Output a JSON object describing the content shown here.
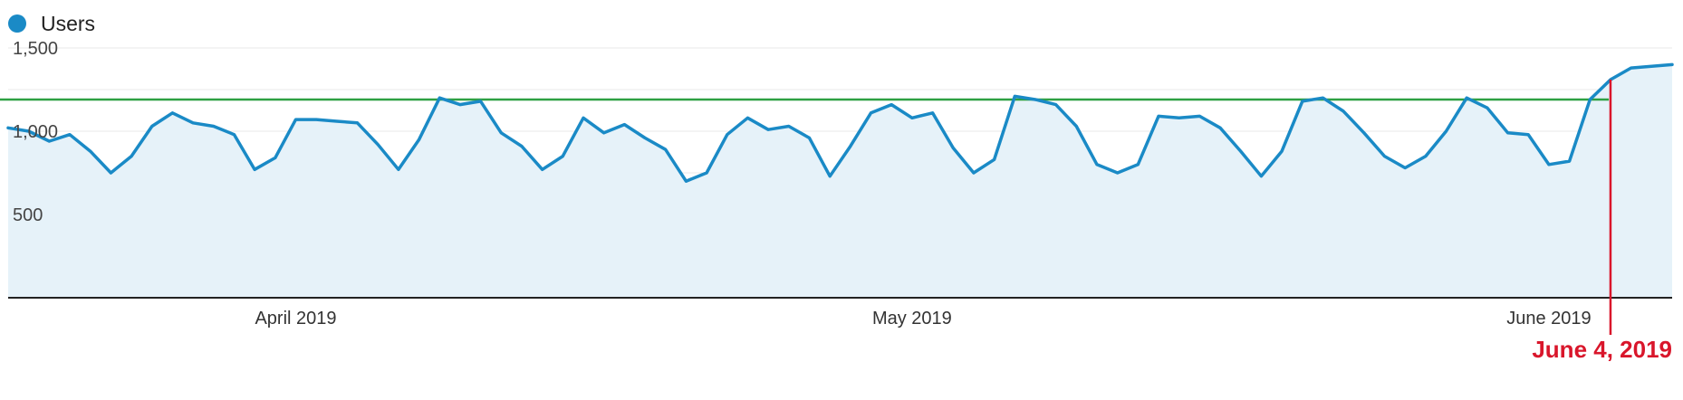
{
  "legend": {
    "label": "Users",
    "color": "#1a8ac6"
  },
  "colors": {
    "series_line": "#1a8ac6",
    "series_fill": "#e6f2f9",
    "reference_line": "#2ea043",
    "marker_line": "#d9162b",
    "annotation": "#d9162b",
    "gridline": "#e8e8e8",
    "baseline": "#222222"
  },
  "chart_data": {
    "type": "area",
    "title": "",
    "xlabel": "",
    "ylabel": "",
    "ylim": [
      0,
      1500
    ],
    "grid": true,
    "legend": "top-left",
    "y_ticks": [
      {
        "value": 500,
        "label": "500"
      },
      {
        "value": 1000,
        "label": "1,000"
      },
      {
        "value": 1500,
        "label": "1,500"
      }
    ],
    "x_ticks": [
      {
        "date": "2019-04-01",
        "label": "April 2019"
      },
      {
        "date": "2019-05-01",
        "label": "May 2019"
      },
      {
        "date": "2019-06-01",
        "label": "June 2019"
      }
    ],
    "x_start": "2019-03-18",
    "x_end": "2019-06-07",
    "series": [
      {
        "name": "Users",
        "x": [
          "2019-03-18",
          "2019-03-19",
          "2019-03-20",
          "2019-03-21",
          "2019-03-22",
          "2019-03-23",
          "2019-03-24",
          "2019-03-25",
          "2019-03-26",
          "2019-03-27",
          "2019-03-28",
          "2019-03-29",
          "2019-03-30",
          "2019-03-31",
          "2019-04-01",
          "2019-04-02",
          "2019-04-03",
          "2019-04-04",
          "2019-04-05",
          "2019-04-06",
          "2019-04-07",
          "2019-04-08",
          "2019-04-09",
          "2019-04-10",
          "2019-04-11",
          "2019-04-12",
          "2019-04-13",
          "2019-04-14",
          "2019-04-15",
          "2019-04-16",
          "2019-04-17",
          "2019-04-18",
          "2019-04-19",
          "2019-04-20",
          "2019-04-21",
          "2019-04-22",
          "2019-04-23",
          "2019-04-24",
          "2019-04-25",
          "2019-04-26",
          "2019-04-27",
          "2019-04-28",
          "2019-04-29",
          "2019-04-30",
          "2019-05-01",
          "2019-05-02",
          "2019-05-03",
          "2019-05-04",
          "2019-05-05",
          "2019-05-06",
          "2019-05-07",
          "2019-05-08",
          "2019-05-09",
          "2019-05-10",
          "2019-05-11",
          "2019-05-12",
          "2019-05-13",
          "2019-05-14",
          "2019-05-15",
          "2019-05-16",
          "2019-05-17",
          "2019-05-18",
          "2019-05-19",
          "2019-05-20",
          "2019-05-21",
          "2019-05-22",
          "2019-05-23",
          "2019-05-24",
          "2019-05-25",
          "2019-05-26",
          "2019-05-27",
          "2019-05-28",
          "2019-05-29",
          "2019-05-30",
          "2019-05-31",
          "2019-06-01",
          "2019-06-02",
          "2019-06-03",
          "2019-06-04",
          "2019-06-05",
          "2019-06-06",
          "2019-06-07"
        ],
        "values": [
          1020,
          1000,
          940,
          980,
          880,
          750,
          850,
          1030,
          1110,
          1050,
          1030,
          980,
          770,
          840,
          1070,
          1070,
          1060,
          1050,
          920,
          770,
          950,
          1200,
          1160,
          1180,
          990,
          910,
          770,
          850,
          1080,
          990,
          1040,
          960,
          890,
          700,
          750,
          980,
          1080,
          1010,
          1030,
          960,
          730,
          910,
          1110,
          1160,
          1080,
          1110,
          900,
          750,
          830,
          1210,
          1190,
          1160,
          1030,
          800,
          750,
          800,
          1090,
          1080,
          1090,
          1020,
          880,
          730,
          880,
          1180,
          1200,
          1120,
          990,
          850,
          780,
          850,
          1000,
          1200,
          1140,
          990,
          980,
          800,
          820,
          1190,
          1310,
          1380,
          1390,
          1400
        ]
      }
    ],
    "reference_lines": [
      {
        "type": "horizontal",
        "value": 1190
      }
    ],
    "annotations": [
      {
        "x": "2019-06-04",
        "text": "June 4, 2019"
      }
    ]
  }
}
